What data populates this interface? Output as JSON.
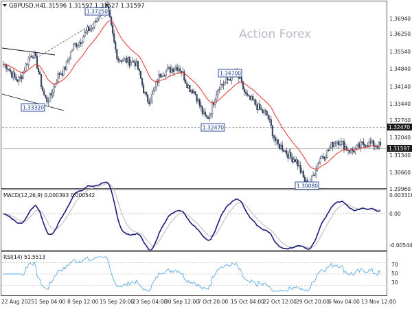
{
  "header": {
    "symbol": "GBPUSD,H4",
    "ohlc": "1.31596 1.31597 1.31527 1.31597"
  },
  "watermark": "Action Forex",
  "colors": {
    "candle": "#33415a",
    "ma": "#e8433e",
    "macd_main": "#1b1a7a",
    "macd_signal": "#b8b8b8",
    "rsi": "#5aa9e8",
    "label_border": "#1d3c8f",
    "dash": "#909090",
    "price_tag_bg": "#1b1b1b"
  },
  "price_axis": [
    "1.36940",
    "1.36250",
    "1.35540",
    "1.34840",
    "1.34140",
    "1.33440",
    "1.32740",
    "1.32040",
    "1.31340",
    "1.30660",
    "1.29960"
  ],
  "tags": {
    "resistance": "1.32470",
    "current": "1.31597"
  },
  "annotations": [
    "1.37250",
    "1.33320",
    "1.34700",
    "1.32470",
    "1.30080"
  ],
  "macd": {
    "label": "MACD(12,26,9) 0.000393 0.000542",
    "axis": [
      "0.003316",
      "0.00",
      "-0.005445"
    ]
  },
  "rsi": {
    "label": "RSI(14) 51.5513",
    "axis": [
      "70",
      "50",
      "30"
    ]
  },
  "time_axis": [
    "22 Aug 2025",
    "1 Sep 04:00",
    "8 Sep 12:00",
    "15 Sep 20:00",
    "23 Sep 04:00",
    "30 Sep 12:00",
    "7 Oct 20:00",
    "15 Oct 04:00",
    "22 Oct 12:00",
    "29 Oct 20:00",
    "6 Nov 04:00",
    "13 Nov 12:00"
  ],
  "chart_data": {
    "type": "candlestick",
    "timeframe": "H4",
    "price_range": [
      1.2996,
      1.3725
    ],
    "anchors": [
      {
        "date": "22 Aug",
        "close": 1.348
      },
      {
        "date": "26 Aug",
        "close": 1.342
      },
      {
        "date": "28 Aug",
        "close": 1.352
      },
      {
        "date": "1 Sep",
        "close": 1.334
      },
      {
        "date": "4 Sep",
        "close": 1.345
      },
      {
        "date": "9 Sep",
        "close": 1.356
      },
      {
        "date": "15 Sep",
        "close": 1.362
      },
      {
        "date": "17 Sep",
        "close": 1.371
      },
      {
        "date": "19 Sep",
        "close": 1.35
      },
      {
        "date": "23 Sep",
        "close": 1.349
      },
      {
        "date": "26 Sep",
        "close": 1.334
      },
      {
        "date": "30 Sep",
        "close": 1.345
      },
      {
        "date": "3 Oct",
        "close": 1.347
      },
      {
        "date": "8 Oct",
        "close": 1.338
      },
      {
        "date": "10 Oct",
        "close": 1.327
      },
      {
        "date": "15 Oct",
        "close": 1.34
      },
      {
        "date": "17 Oct",
        "close": 1.344
      },
      {
        "date": "22 Oct",
        "close": 1.334
      },
      {
        "date": "27 Oct",
        "close": 1.329
      },
      {
        "date": "30 Oct",
        "close": 1.316
      },
      {
        "date": "3 Nov",
        "close": 1.311
      },
      {
        "date": "5 Nov",
        "close": 1.301
      },
      {
        "date": "7 Nov",
        "close": 1.312
      },
      {
        "date": "11 Nov",
        "close": 1.318
      },
      {
        "date": "12 Nov",
        "close": 1.314
      },
      {
        "date": "14 Nov",
        "close": 1.317
      },
      {
        "date": "17 Nov",
        "close": 1.316
      }
    ]
  }
}
